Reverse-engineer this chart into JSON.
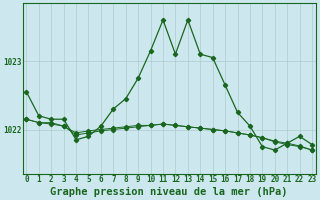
{
  "title": "Graphe pression niveau de la mer (hPa)",
  "background_color": "#cce8ee",
  "grid_color": "#aacccc",
  "line_color": "#1a6620",
  "x_labels": [
    "0",
    "1",
    "2",
    "3",
    "4",
    "5",
    "6",
    "7",
    "8",
    "9",
    "10",
    "11",
    "12",
    "13",
    "14",
    "15",
    "16",
    "17",
    "18",
    "19",
    "20",
    "21",
    "22",
    "23"
  ],
  "series1": [
    1022.55,
    1022.2,
    1022.15,
    1022.15,
    1021.85,
    1021.9,
    1022.05,
    1022.3,
    1022.45,
    1022.75,
    1023.15,
    1023.6,
    1023.1,
    1023.6,
    1023.1,
    1023.05,
    1022.65,
    1022.25,
    1022.05,
    1021.75,
    1021.7,
    1021.8,
    1021.9,
    1021.78
  ],
  "series2": [
    1022.15,
    1022.1,
    1022.1,
    1022.05,
    1021.92,
    1021.95,
    1021.98,
    1022.0,
    1022.02,
    1022.04,
    1022.06,
    1022.08,
    1022.06,
    1022.04,
    1022.02,
    1022.0,
    1021.98,
    1021.95,
    1021.92,
    1021.88,
    1021.82,
    1021.78,
    1021.75,
    1021.7
  ],
  "series3": [
    1022.15,
    1022.1,
    1022.08,
    1022.05,
    1021.95,
    1021.98,
    1022.0,
    1022.02,
    1022.04,
    1022.06,
    1022.06,
    1022.08,
    1022.06,
    1022.04,
    1022.02,
    1022.0,
    1021.98,
    1021.95,
    1021.92,
    1021.88,
    1021.83,
    1021.8,
    1021.76,
    1021.7
  ],
  "ylim": [
    1021.35,
    1023.85
  ],
  "yticks": [
    1022.0,
    1023.0
  ],
  "title_fontsize": 7.5,
  "tick_fontsize": 5.5,
  "xlabel_fontsize": 7.5
}
